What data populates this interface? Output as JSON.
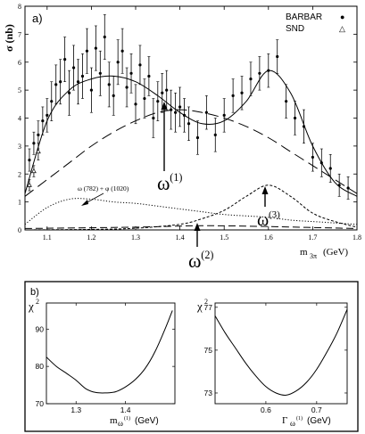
{
  "chart_data": [
    {
      "panel": "a)",
      "type": "scatter",
      "xlabel": "m",
      "xlabel_sub": "3π",
      "xlabel_unit": "(GeV)",
      "ylabel": "σ (nb)",
      "xlim": [
        1.05,
        1.8
      ],
      "ylim": [
        0,
        8
      ],
      "xticks": [
        "1.1",
        "1.2",
        "1.3",
        "1.4",
        "1.5",
        "1.6",
        "1.7",
        "1.8"
      ],
      "yticks": [
        "0",
        "1",
        "2",
        "3",
        "4",
        "5",
        "6",
        "7",
        "8"
      ],
      "legend": {
        "placement": "top-right",
        "entries": [
          {
            "label": "BARBAR",
            "marker": "●"
          },
          {
            "label": "SND",
            "marker": "△"
          }
        ]
      },
      "series": [
        {
          "name": "BARBAR",
          "marker": "circle",
          "points": [
            {
              "x": 1.06,
              "y": 2.5,
              "e": 0.4
            },
            {
              "x": 1.07,
              "y": 3.1,
              "e": 0.4
            },
            {
              "x": 1.08,
              "y": 3.4,
              "e": 0.5
            },
            {
              "x": 1.09,
              "y": 3.9,
              "e": 0.5
            },
            {
              "x": 1.1,
              "y": 4.1,
              "e": 0.6
            },
            {
              "x": 1.11,
              "y": 4.6,
              "e": 0.7
            },
            {
              "x": 1.12,
              "y": 5.2,
              "e": 0.7
            },
            {
              "x": 1.13,
              "y": 5.3,
              "e": 0.8
            },
            {
              "x": 1.14,
              "y": 6.1,
              "e": 0.8
            },
            {
              "x": 1.15,
              "y": 4.9,
              "e": 0.8
            },
            {
              "x": 1.16,
              "y": 5.8,
              "e": 0.8
            },
            {
              "x": 1.17,
              "y": 5.3,
              "e": 0.8
            },
            {
              "x": 1.18,
              "y": 5.5,
              "e": 0.8
            },
            {
              "x": 1.19,
              "y": 6.4,
              "e": 0.8
            },
            {
              "x": 1.2,
              "y": 5.0,
              "e": 0.8
            },
            {
              "x": 1.21,
              "y": 6.5,
              "e": 0.8
            },
            {
              "x": 1.22,
              "y": 5.6,
              "e": 0.8
            },
            {
              "x": 1.23,
              "y": 6.9,
              "e": 0.8
            },
            {
              "x": 1.24,
              "y": 5.2,
              "e": 0.8
            },
            {
              "x": 1.25,
              "y": 4.8,
              "e": 0.7
            },
            {
              "x": 1.26,
              "y": 6.0,
              "e": 0.8
            },
            {
              "x": 1.27,
              "y": 6.4,
              "e": 0.8
            },
            {
              "x": 1.28,
              "y": 5.1,
              "e": 0.7
            },
            {
              "x": 1.29,
              "y": 5.6,
              "e": 0.7
            },
            {
              "x": 1.3,
              "y": 4.5,
              "e": 0.7
            },
            {
              "x": 1.31,
              "y": 5.9,
              "e": 0.7
            },
            {
              "x": 1.32,
              "y": 4.7,
              "e": 0.7
            },
            {
              "x": 1.33,
              "y": 5.5,
              "e": 0.7
            },
            {
              "x": 1.34,
              "y": 4.0,
              "e": 0.7
            },
            {
              "x": 1.35,
              "y": 4.6,
              "e": 0.7
            },
            {
              "x": 1.36,
              "y": 4.9,
              "e": 0.7
            },
            {
              "x": 1.37,
              "y": 5.0,
              "e": 0.7
            },
            {
              "x": 1.38,
              "y": 4.3,
              "e": 0.7
            },
            {
              "x": 1.39,
              "y": 4.2,
              "e": 0.7
            },
            {
              "x": 1.4,
              "y": 4.4,
              "e": 0.7
            },
            {
              "x": 1.41,
              "y": 4.1,
              "e": 0.6
            },
            {
              "x": 1.42,
              "y": 3.8,
              "e": 0.6
            },
            {
              "x": 1.44,
              "y": 3.3,
              "e": 0.6
            },
            {
              "x": 1.46,
              "y": 4.2,
              "e": 0.6
            },
            {
              "x": 1.48,
              "y": 3.4,
              "e": 0.6
            },
            {
              "x": 1.5,
              "y": 4.1,
              "e": 0.6
            },
            {
              "x": 1.52,
              "y": 4.8,
              "e": 0.6
            },
            {
              "x": 1.54,
              "y": 4.9,
              "e": 0.6
            },
            {
              "x": 1.56,
              "y": 5.4,
              "e": 0.6
            },
            {
              "x": 1.58,
              "y": 5.6,
              "e": 0.6
            },
            {
              "x": 1.6,
              "y": 5.7,
              "e": 0.6
            },
            {
              "x": 1.62,
              "y": 6.2,
              "e": 0.6
            },
            {
              "x": 1.64,
              "y": 4.6,
              "e": 0.6
            },
            {
              "x": 1.66,
              "y": 4.0,
              "e": 0.6
            },
            {
              "x": 1.68,
              "y": 3.7,
              "e": 0.6
            },
            {
              "x": 1.7,
              "y": 2.6,
              "e": 0.5
            },
            {
              "x": 1.72,
              "y": 2.4,
              "e": 0.5
            },
            {
              "x": 1.74,
              "y": 2.2,
              "e": 0.5
            },
            {
              "x": 1.76,
              "y": 1.6,
              "e": 0.4
            },
            {
              "x": 1.78,
              "y": 1.5,
              "e": 0.4
            }
          ]
        },
        {
          "name": "SND",
          "marker": "triangle",
          "points": [
            {
              "x": 1.06,
              "y": 1.6,
              "e": 0.2
            },
            {
              "x": 1.07,
              "y": 2.1,
              "e": 0.2
            },
            {
              "x": 1.08,
              "y": 2.8,
              "e": 0.3
            }
          ]
        }
      ],
      "curves": {
        "fit": {
          "style": "solid",
          "x": [
            1.05,
            1.1,
            1.15,
            1.2,
            1.25,
            1.3,
            1.35,
            1.4,
            1.45,
            1.5,
            1.55,
            1.6,
            1.65,
            1.7,
            1.75,
            1.8
          ],
          "y": [
            1.3,
            3.9,
            5.0,
            5.4,
            5.5,
            5.3,
            4.8,
            4.2,
            3.8,
            3.9,
            4.6,
            5.7,
            4.9,
            3.0,
            1.7,
            1.2
          ]
        },
        "omega1": {
          "style": "dashed",
          "x": [
            1.05,
            1.1,
            1.15,
            1.2,
            1.25,
            1.3,
            1.35,
            1.4,
            1.45,
            1.5,
            1.55,
            1.6,
            1.65,
            1.7,
            1.75,
            1.8
          ],
          "y": [
            1.2,
            1.8,
            2.4,
            3.0,
            3.5,
            3.9,
            4.2,
            4.3,
            4.2,
            4.0,
            3.7,
            3.3,
            2.8,
            2.3,
            1.8,
            1.3
          ]
        },
        "omega782_phi1020": {
          "style": "dotted",
          "x": [
            1.05,
            1.1,
            1.15,
            1.2,
            1.25,
            1.3,
            1.35,
            1.4,
            1.45,
            1.5,
            1.55,
            1.6,
            1.65,
            1.7,
            1.75,
            1.8
          ],
          "y": [
            0.2,
            0.8,
            1.1,
            1.1,
            1.0,
            0.95,
            0.85,
            0.75,
            0.65,
            0.55,
            0.5,
            0.45,
            0.35,
            0.3,
            0.25,
            0.2
          ]
        },
        "omega3": {
          "style": "short-dashed",
          "x": [
            1.05,
            1.2,
            1.3,
            1.4,
            1.45,
            1.5,
            1.55,
            1.6,
            1.65,
            1.7,
            1.75,
            1.8
          ],
          "y": [
            0,
            0.02,
            0.06,
            0.2,
            0.4,
            0.7,
            1.2,
            1.6,
            1.2,
            0.6,
            0.3,
            0.1
          ]
        },
        "omega2": {
          "style": "long-dashed",
          "x": [
            1.05,
            1.3,
            1.45,
            1.6,
            1.8
          ],
          "y": [
            0.05,
            0.1,
            0.15,
            0.12,
            0.05
          ]
        }
      },
      "annotations": [
        {
          "label": "ω",
          "sup": "(1)",
          "x": 1.37,
          "y": 4.3
        },
        {
          "label": "ω",
          "sup": "(2)",
          "x": 1.46,
          "y": 0.2
        },
        {
          "label": "ω",
          "sup": "(3)",
          "x": 1.6,
          "y": 1.6
        },
        {
          "label": "ω (782) + φ (1020)",
          "x": 1.16,
          "y": 1.1
        }
      ]
    },
    {
      "panel": "b)",
      "type": "line",
      "ylabel": "χ",
      "ylabel_sup": "2",
      "xlabel": "m",
      "xlabel_sub": "ω",
      "xlabel_sup": "(1)",
      "xlabel_unit": "(GeV)",
      "xlim": [
        1.24,
        1.5
      ],
      "ylim": [
        70,
        97
      ],
      "xticks": [
        "1.3",
        "1.4"
      ],
      "yticks": [
        "70",
        "80",
        "90"
      ],
      "x": [
        1.24,
        1.26,
        1.28,
        1.3,
        1.32,
        1.34,
        1.36,
        1.38,
        1.4,
        1.42,
        1.44,
        1.46,
        1.48,
        1.495
      ],
      "y": [
        82.5,
        80.0,
        78.2,
        76.3,
        74.0,
        73.0,
        72.9,
        73.2,
        74.5,
        76.5,
        79.5,
        84.0,
        90.0,
        95.0
      ]
    },
    {
      "panel": "b)",
      "type": "line",
      "ylabel": "χ",
      "ylabel_sup": "2",
      "xlabel": "Γ",
      "xlabel_sub": "ω",
      "xlabel_sup": "(1)",
      "xlabel_unit": "(GeV)",
      "xlim": [
        0.5,
        0.76
      ],
      "ylim": [
        72.5,
        77.2
      ],
      "xticks": [
        "0.6",
        "0.7"
      ],
      "yticks": [
        "73",
        "75",
        "77"
      ],
      "x": [
        0.5,
        0.52,
        0.54,
        0.56,
        0.58,
        0.6,
        0.62,
        0.64,
        0.66,
        0.68,
        0.7,
        0.72,
        0.74,
        0.76
      ],
      "y": [
        76.6,
        75.8,
        75.1,
        74.4,
        73.8,
        73.3,
        73.0,
        72.9,
        73.1,
        73.5,
        74.1,
        74.9,
        75.8,
        76.9
      ]
    }
  ]
}
